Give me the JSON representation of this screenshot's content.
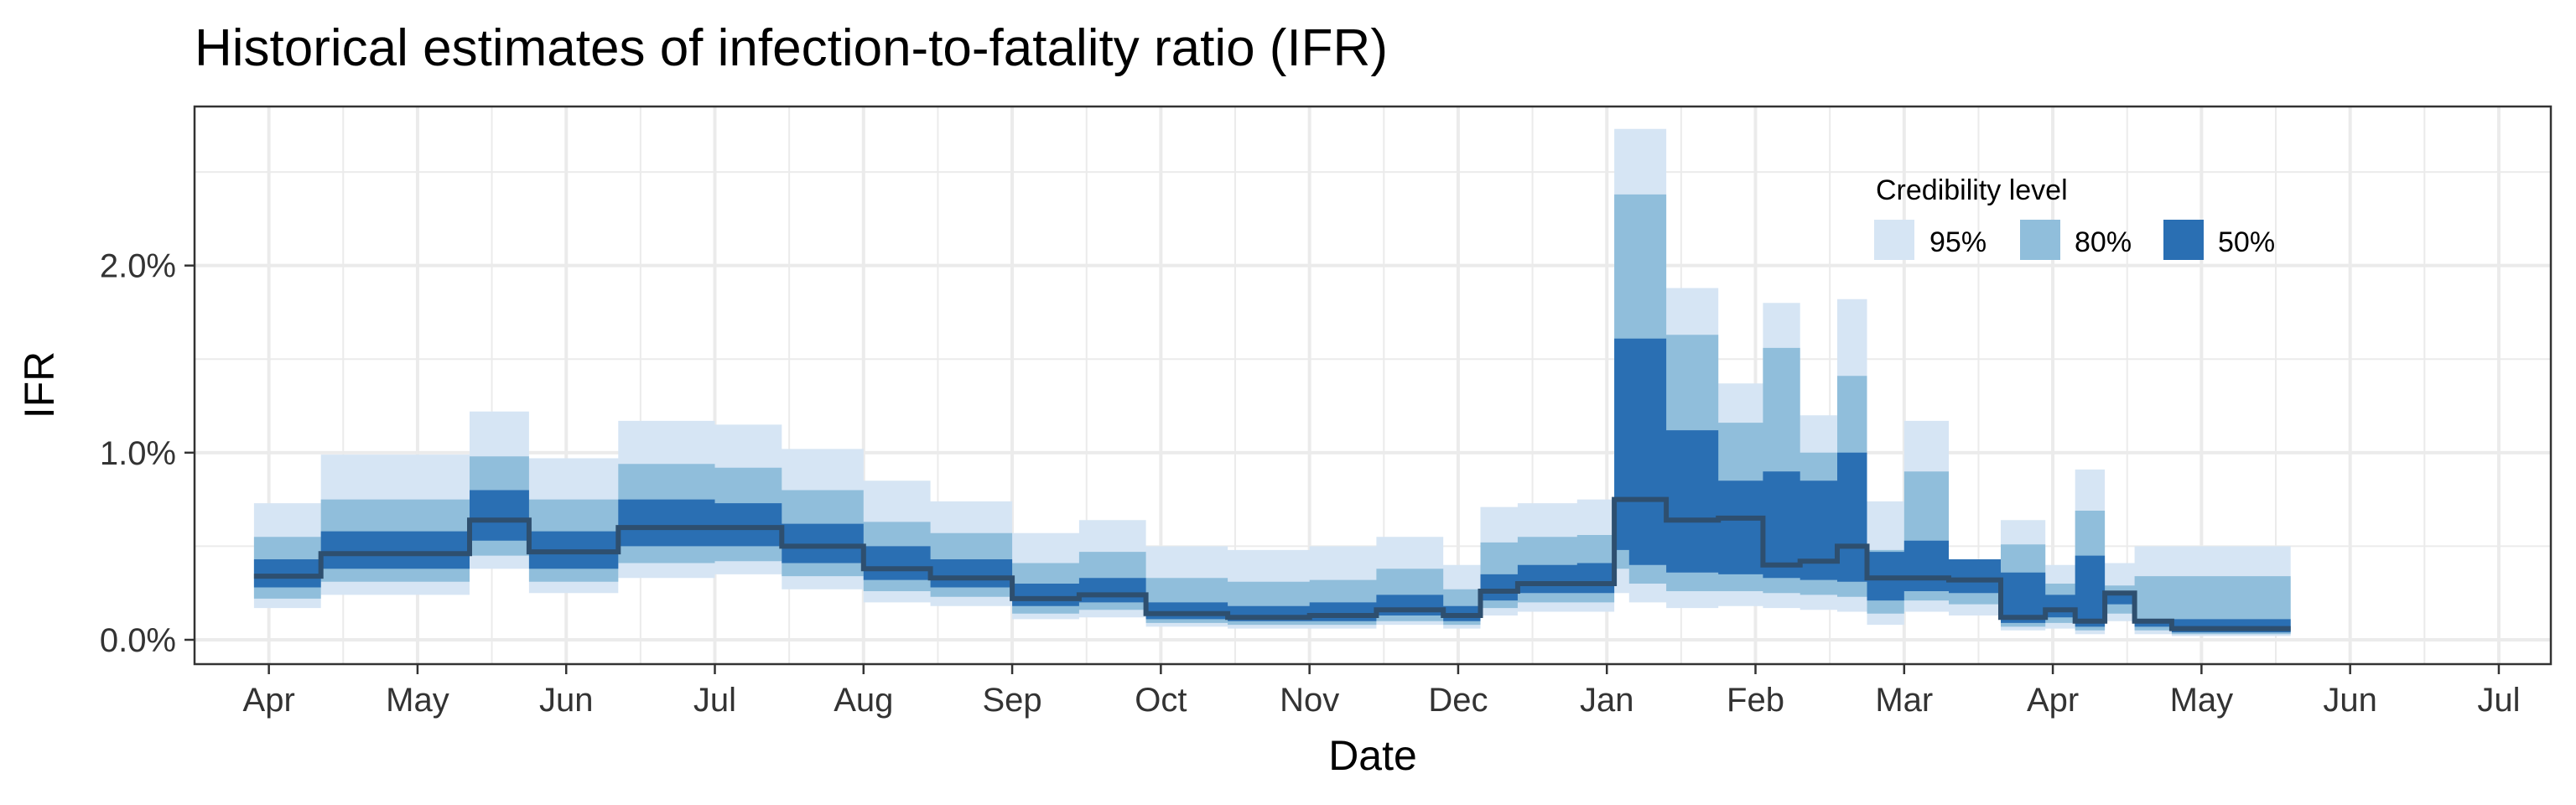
{
  "chart_data": {
    "type": "area",
    "title": "Historical estimates of infection-to-fatality ratio (IFR)",
    "xlabel": "Date",
    "ylabel": "IFR",
    "x_ticks": [
      "Apr",
      "May",
      "Jun",
      "Jul",
      "Aug",
      "Sep",
      "Oct",
      "Nov",
      "Dec",
      "Jan",
      "Feb",
      "Mar",
      "Apr",
      "May",
      "Jun",
      "Jul"
    ],
    "y_ticks": [
      "0.0%",
      "1.0%",
      "2.0%"
    ],
    "x_range_months": [
      -0.5,
      15.35
    ],
    "y_range": [
      -0.13,
      2.85
    ],
    "grid": true,
    "legend": {
      "title": "Credibility level",
      "placement": "top-right",
      "entries": [
        {
          "label": "95%",
          "color": "#d6e5f4"
        },
        {
          "label": "80%",
          "color": "#90bedb"
        },
        {
          "label": "50%",
          "color": "#2a6fb3"
        }
      ]
    },
    "colors": {
      "median": "#2e4f6f",
      "background": "#ffffff",
      "grid": "#ebebeb",
      "panel_border": "#333333"
    },
    "x_note": "x values are months counted from April of the first year (0 = Apr, 12 = Apr of the next year)",
    "x": [
      -0.1,
      0.35,
      1.0,
      1.35,
      1.75,
      2.0,
      2.35,
      3.0,
      3.35,
      3.45,
      4.0,
      4.45,
      5.0,
      5.45,
      5.9,
      6.0,
      6.45,
      7.0,
      7.45,
      7.9,
      8.0,
      8.15,
      8.4,
      8.8,
      9.05,
      9.15,
      9.4,
      9.75,
      10.05,
      10.3,
      10.55,
      10.75,
      11.0,
      11.3,
      11.65,
      11.95,
      12.15,
      12.35,
      12.55,
      12.8,
      13.0,
      13.35
    ],
    "median": [
      0.34,
      0.46,
      0.46,
      0.64,
      0.47,
      0.47,
      0.6,
      0.6,
      0.6,
      0.5,
      0.38,
      0.33,
      0.22,
      0.24,
      0.14,
      0.14,
      0.12,
      0.13,
      0.16,
      0.13,
      0.13,
      0.26,
      0.3,
      0.3,
      0.75,
      0.75,
      0.64,
      0.65,
      0.4,
      0.42,
      0.5,
      0.33,
      0.33,
      0.32,
      0.12,
      0.16,
      0.1,
      0.25,
      0.1,
      0.06,
      0.06,
      0.06
    ],
    "series": [
      {
        "name": "95%",
        "lower": [
          0.17,
          0.24,
          0.24,
          0.38,
          0.25,
          0.25,
          0.33,
          0.35,
          0.35,
          0.27,
          0.2,
          0.18,
          0.11,
          0.12,
          0.07,
          0.07,
          0.06,
          0.06,
          0.08,
          0.06,
          0.06,
          0.13,
          0.15,
          0.15,
          0.25,
          0.2,
          0.17,
          0.18,
          0.17,
          0.16,
          0.15,
          0.08,
          0.15,
          0.13,
          0.05,
          0.06,
          0.03,
          0.1,
          0.03,
          0.02,
          0.02,
          0.02
        ],
        "upper": [
          0.73,
          0.99,
          0.99,
          1.22,
          0.97,
          0.97,
          1.17,
          1.15,
          1.15,
          1.02,
          0.85,
          0.74,
          0.57,
          0.64,
          0.5,
          0.5,
          0.48,
          0.5,
          0.55,
          0.4,
          0.4,
          0.71,
          0.73,
          0.75,
          2.73,
          2.73,
          1.88,
          1.37,
          1.8,
          1.2,
          1.82,
          0.74,
          1.17,
          0.39,
          0.64,
          0.4,
          0.91,
          0.41,
          0.5,
          0.5,
          0.5,
          0.5
        ]
      },
      {
        "name": "80%",
        "lower": [
          0.22,
          0.31,
          0.31,
          0.45,
          0.31,
          0.31,
          0.41,
          0.42,
          0.42,
          0.34,
          0.26,
          0.23,
          0.14,
          0.16,
          0.09,
          0.09,
          0.08,
          0.08,
          0.1,
          0.08,
          0.08,
          0.17,
          0.2,
          0.2,
          0.38,
          0.3,
          0.26,
          0.26,
          0.25,
          0.24,
          0.23,
          0.14,
          0.21,
          0.19,
          0.07,
          0.09,
          0.05,
          0.14,
          0.05,
          0.03,
          0.03,
          0.03
        ],
        "upper": [
          0.55,
          0.75,
          0.75,
          0.98,
          0.75,
          0.75,
          0.94,
          0.92,
          0.92,
          0.8,
          0.63,
          0.57,
          0.41,
          0.47,
          0.33,
          0.33,
          0.31,
          0.32,
          0.38,
          0.27,
          0.27,
          0.52,
          0.55,
          0.56,
          2.38,
          2.38,
          1.63,
          1.16,
          1.56,
          1.0,
          1.41,
          0.48,
          0.9,
          0.3,
          0.51,
          0.3,
          0.69,
          0.29,
          0.34,
          0.34,
          0.34,
          0.34
        ]
      },
      {
        "name": "50%",
        "lower": [
          0.28,
          0.38,
          0.38,
          0.53,
          0.38,
          0.38,
          0.5,
          0.5,
          0.5,
          0.41,
          0.32,
          0.28,
          0.18,
          0.2,
          0.11,
          0.11,
          0.1,
          0.1,
          0.13,
          0.1,
          0.1,
          0.21,
          0.25,
          0.25,
          0.48,
          0.4,
          0.36,
          0.35,
          0.33,
          0.32,
          0.31,
          0.21,
          0.26,
          0.25,
          0.09,
          0.12,
          0.07,
          0.19,
          0.07,
          0.04,
          0.04,
          0.04
        ],
        "upper": [
          0.43,
          0.58,
          0.58,
          0.8,
          0.58,
          0.58,
          0.75,
          0.73,
          0.73,
          0.62,
          0.5,
          0.43,
          0.3,
          0.33,
          0.2,
          0.2,
          0.18,
          0.2,
          0.24,
          0.18,
          0.18,
          0.35,
          0.4,
          0.41,
          1.61,
          1.61,
          1.12,
          0.85,
          0.9,
          0.85,
          1.0,
          0.47,
          0.53,
          0.43,
          0.36,
          0.24,
          0.45,
          0.24,
          0.11,
          0.11,
          0.11,
          0.11
        ]
      }
    ],
    "x_end": 13.6
  }
}
